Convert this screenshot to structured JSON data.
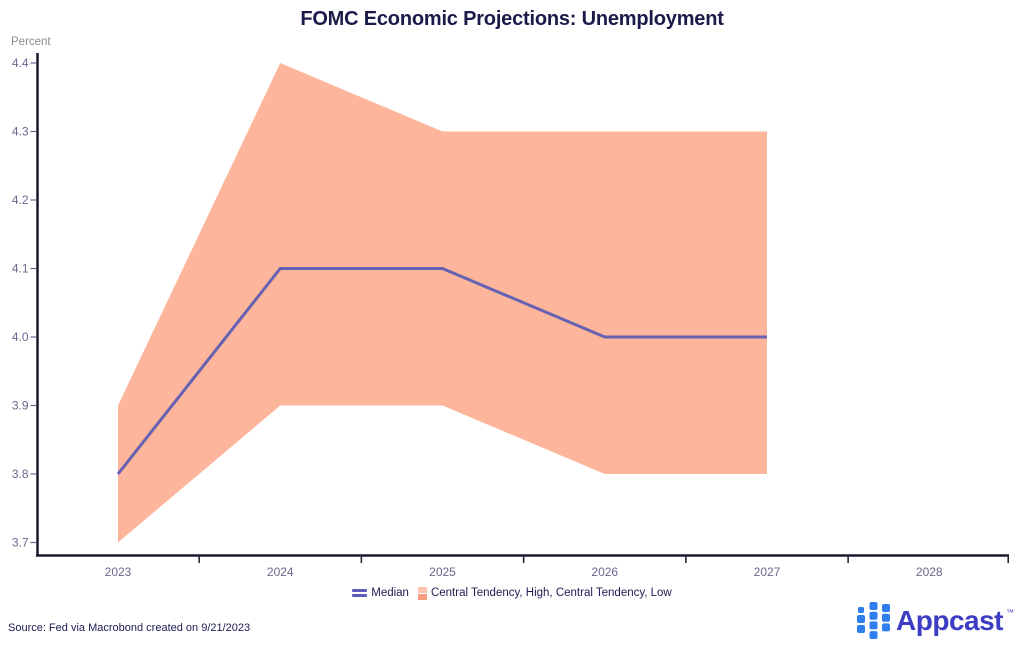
{
  "chart_data": {
    "type": "line",
    "title": "FOMC Economic Projections: Unemployment",
    "ylabel": "Percent",
    "xlabel": "",
    "x": [
      2023,
      2024,
      2025,
      2026,
      2027
    ],
    "xticks": [
      2023,
      2024,
      2025,
      2026,
      2027,
      2028
    ],
    "yticks": [
      3.7,
      3.8,
      3.9,
      4.0,
      4.1,
      4.2,
      4.3,
      4.4
    ],
    "ylim": [
      3.7,
      4.4
    ],
    "grid": false,
    "legend_position": "bottom-center",
    "series": [
      {
        "name": "Median",
        "type": "line",
        "color": "#6661b1",
        "values": [
          3.8,
          4.1,
          4.1,
          4.0,
          4.0
        ]
      },
      {
        "name": "Central Tendency, High",
        "type": "band-upper",
        "color": "#fdb69c",
        "values": [
          3.9,
          4.4,
          4.3,
          4.3,
          4.3
        ]
      },
      {
        "name": "Central Tendency, Low",
        "type": "band-lower",
        "color": "#fdb69c",
        "values": [
          3.7,
          3.9,
          3.9,
          3.8,
          3.8
        ]
      }
    ]
  },
  "legend": {
    "median_label": "Median",
    "band_label": "Central Tendency, High, Central Tendency, Low"
  },
  "footer": {
    "source": "Source: Fed via Macrobond created on 9/21/2023"
  },
  "branding": {
    "logo_text": "Appcast",
    "trademark": "™"
  },
  "icons": {
    "legend_median": "double-line-swatch",
    "legend_band": "stacked-square-swatch",
    "logo": "appcast-blue-square-grid"
  },
  "colors": {
    "title": "#1b1b4a",
    "axis": "#18182e",
    "tick_label": "#68688e",
    "unit_label": "#8b8b8b",
    "median": "#6661b1",
    "band": "#fdb69c",
    "band_swatch_top": "#fcc3af",
    "band_swatch_bottom": "#fa9d82",
    "source_text": "#1c1c52",
    "logo_text": "#3c3cc4",
    "logo_square": "#2f7ef0"
  }
}
